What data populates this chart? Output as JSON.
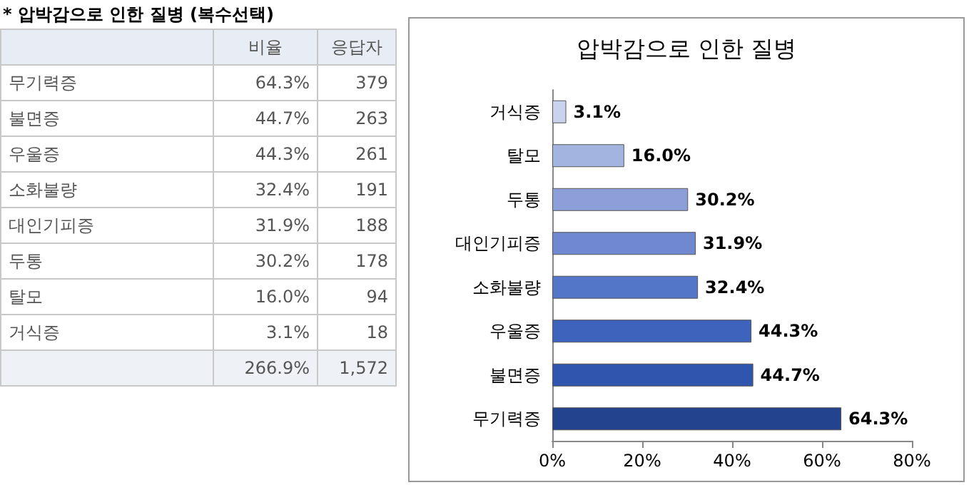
{
  "chart_data": [
    {
      "type": "other",
      "title": "* 압박감으로 인한 질병 (복수선택)",
      "categories": [
        "무기력증",
        "불면증",
        "우울증",
        "소화불량",
        "대인기피증",
        "두통",
        "탈모",
        "거식증"
      ],
      "series": [
        {
          "name": "비율",
          "values": [
            64.3,
            44.7,
            44.3,
            32.4,
            31.9,
            30.2,
            16.0,
            3.1
          ],
          "value_labels": [
            "64.3%",
            "44.7%",
            "44.3%",
            "32.4%",
            "31.9%",
            "30.2%",
            "16.0%",
            "3.1%"
          ]
        },
        {
          "name": "응답자",
          "values": [
            379,
            263,
            261,
            191,
            188,
            178,
            94,
            18
          ],
          "value_labels": [
            "379",
            "263",
            "261",
            "191",
            "188",
            "178",
            "94",
            "18"
          ]
        }
      ],
      "totals": [
        "266.9%",
        "1,572"
      ]
    },
    {
      "type": "bar",
      "orientation": "horizontal",
      "title": "압박감으로 인한 질병",
      "categories": [
        "거식증",
        "탈모",
        "두통",
        "대인기피증",
        "소화불량",
        "우울증",
        "불면증",
        "무기력증"
      ],
      "values": [
        3.1,
        16.0,
        30.2,
        31.9,
        32.4,
        44.3,
        44.7,
        64.3
      ],
      "value_labels": [
        "3.1%",
        "16.0%",
        "30.2%",
        "31.9%",
        "32.4%",
        "44.3%",
        "44.7%",
        "64.3%"
      ],
      "colors": [
        "#c9d3ee",
        "#a3b4e0",
        "#8c9fd8",
        "#6f88d0",
        "#5476c8",
        "#3e63bc",
        "#2f55ae",
        "#23438f"
      ],
      "xlim": [
        0,
        80
      ],
      "xticks": [
        {
          "value": 0,
          "label": "0%"
        },
        {
          "value": 20,
          "label": "20%"
        },
        {
          "value": 40,
          "label": "40%"
        },
        {
          "value": 60,
          "label": "60%"
        },
        {
          "value": 80,
          "label": "80%"
        }
      ]
    }
  ]
}
